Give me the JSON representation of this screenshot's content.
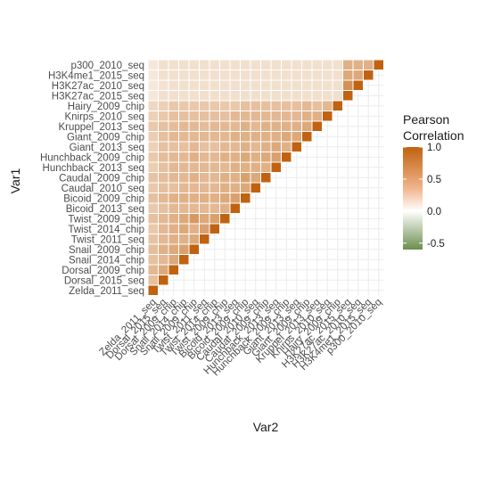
{
  "chart_data": {
    "type": "heatmap",
    "title": "",
    "xlabel": "Var2",
    "ylabel": "Var1",
    "grid": true,
    "labels": [
      "Zelda_2011_seq",
      "Dorsal_2015_seq",
      "Dorsal_2009_chip",
      "Snail_2014_chip",
      "Snail_2009_chip",
      "Twist_2011_seq",
      "Twist_2014_chip",
      "Twist_2009_chip",
      "Bicoid_2013_seq",
      "Bicoid_2009_chip",
      "Caudal_2010_seq",
      "Caudal_2009_chip",
      "Hunchback_2013_seq",
      "Hunchback_2009_chip",
      "Giant_2013_seq",
      "Giant_2009_chip",
      "Kruppel_2013_seq",
      "Knirps_2010_seq",
      "Hairy_2009_chip",
      "H3K27ac_2015_seq",
      "H3K27ac_2010_seq",
      "H3K4me1_2015_seq",
      "p300_2010_seq"
    ],
    "matrix_upper": [
      [
        1.0
      ],
      [
        0.4,
        1.0
      ],
      [
        0.45,
        0.55,
        1.0
      ],
      [
        0.4,
        0.45,
        0.55,
        1.0
      ],
      [
        0.42,
        0.5,
        0.55,
        0.6,
        1.0
      ],
      [
        0.38,
        0.45,
        0.5,
        0.5,
        0.55,
        1.0
      ],
      [
        0.35,
        0.45,
        0.5,
        0.55,
        0.5,
        0.6,
        1.0
      ],
      [
        0.4,
        0.45,
        0.5,
        0.55,
        0.65,
        0.55,
        0.6,
        1.0
      ],
      [
        0.35,
        0.4,
        0.45,
        0.45,
        0.45,
        0.45,
        0.45,
        0.5,
        1.0
      ],
      [
        0.4,
        0.45,
        0.5,
        0.5,
        0.5,
        0.5,
        0.5,
        0.55,
        0.6,
        1.0
      ],
      [
        0.35,
        0.4,
        0.4,
        0.45,
        0.45,
        0.45,
        0.45,
        0.5,
        0.5,
        0.55,
        1.0
      ],
      [
        0.38,
        0.42,
        0.45,
        0.45,
        0.5,
        0.45,
        0.45,
        0.5,
        0.5,
        0.6,
        0.55,
        1.0
      ],
      [
        0.32,
        0.4,
        0.45,
        0.45,
        0.45,
        0.45,
        0.45,
        0.45,
        0.5,
        0.5,
        0.5,
        0.5,
        1.0
      ],
      [
        0.35,
        0.42,
        0.45,
        0.45,
        0.5,
        0.45,
        0.45,
        0.5,
        0.5,
        0.55,
        0.5,
        0.55,
        0.6,
        1.0
      ],
      [
        0.3,
        0.4,
        0.4,
        0.4,
        0.45,
        0.4,
        0.4,
        0.45,
        0.45,
        0.5,
        0.45,
        0.5,
        0.55,
        0.5,
        1.0
      ],
      [
        0.32,
        0.4,
        0.45,
        0.45,
        0.45,
        0.45,
        0.45,
        0.45,
        0.5,
        0.5,
        0.5,
        0.5,
        0.5,
        0.55,
        0.55,
        1.0
      ],
      [
        0.35,
        0.4,
        0.42,
        0.45,
        0.45,
        0.42,
        0.45,
        0.45,
        0.45,
        0.5,
        0.45,
        0.5,
        0.5,
        0.5,
        0.5,
        0.55,
        1.0
      ],
      [
        0.3,
        0.35,
        0.4,
        0.4,
        0.4,
        0.4,
        0.4,
        0.4,
        0.45,
        0.45,
        0.45,
        0.45,
        0.45,
        0.45,
        0.45,
        0.5,
        0.5,
        1.0
      ],
      [
        0.25,
        0.3,
        0.35,
        0.35,
        0.35,
        0.35,
        0.35,
        0.35,
        0.35,
        0.4,
        0.4,
        0.4,
        0.4,
        0.4,
        0.4,
        0.45,
        0.4,
        0.45,
        1.0
      ],
      [
        0.15,
        0.2,
        0.2,
        0.2,
        0.2,
        0.2,
        0.2,
        0.2,
        0.2,
        0.2,
        0.2,
        0.2,
        0.2,
        0.2,
        0.2,
        0.2,
        0.2,
        0.2,
        0.2,
        1.0
      ],
      [
        0.15,
        0.18,
        0.2,
        0.2,
        0.2,
        0.2,
        0.2,
        0.2,
        0.2,
        0.2,
        0.2,
        0.2,
        0.2,
        0.2,
        0.2,
        0.2,
        0.2,
        0.2,
        0.2,
        0.7,
        1.0
      ],
      [
        0.15,
        0.2,
        0.2,
        0.2,
        0.2,
        0.2,
        0.2,
        0.2,
        0.2,
        0.2,
        0.2,
        0.2,
        0.2,
        0.2,
        0.2,
        0.2,
        0.2,
        0.2,
        0.2,
        0.55,
        0.55,
        1.0
      ],
      [
        0.15,
        0.2,
        0.2,
        0.2,
        0.2,
        0.2,
        0.2,
        0.2,
        0.2,
        0.2,
        0.2,
        0.2,
        0.2,
        0.2,
        0.2,
        0.2,
        0.2,
        0.2,
        0.2,
        0.5,
        0.5,
        0.5,
        1.0
      ]
    ],
    "legend": {
      "title_lines": [
        "Pearson",
        "Correlation"
      ],
      "ticks": [
        "1.0",
        "0.5",
        "0.0",
        "-0.5"
      ],
      "range": [
        -0.6,
        1.0
      ],
      "placement": "right"
    },
    "colors": {
      "high": "#c0620f",
      "mid": "#ffffff",
      "low": "#6b8e4e",
      "grid": "#ebebeb",
      "cell_border": "#ffffff"
    }
  }
}
